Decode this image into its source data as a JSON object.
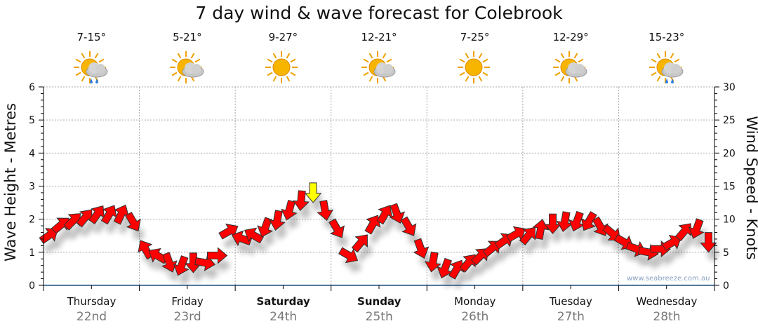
{
  "title": "7 day wind & wave forecast for Colebrook",
  "days": [
    {
      "day": "Thursday",
      "date": "22nd",
      "temp": "7-15°",
      "icon": "sun-cloud-rain",
      "bold": false
    },
    {
      "day": "Friday",
      "date": "23rd",
      "temp": "5-21°",
      "icon": "sun-cloud",
      "bold": false
    },
    {
      "day": "Saturday",
      "date": "24th",
      "temp": "9-27°",
      "icon": "sun",
      "bold": true
    },
    {
      "day": "Sunday",
      "date": "25th",
      "temp": "12-21°",
      "icon": "sun-cloud",
      "bold": true
    },
    {
      "day": "Monday",
      "date": "26th",
      "temp": "7-25°",
      "icon": "sun",
      "bold": false
    },
    {
      "day": "Tuesday",
      "date": "27th",
      "temp": "12-29°",
      "icon": "sun-cloud",
      "bold": false
    },
    {
      "day": "Wednesday",
      "date": "28th",
      "temp": "15-23°",
      "icon": "sun-cloud-rain",
      "bold": false
    }
  ],
  "watermark": "www.seabreeze.com.au",
  "chart_data": {
    "type": "scatter",
    "title": "7 day wind & wave forecast for Colebrook",
    "ylabel": "Wave Height - Metres",
    "y2label": "Wind Speed - Knots",
    "ylim": [
      0,
      6
    ],
    "y2lim": [
      0,
      30
    ],
    "yticks": [
      "0",
      "1",
      "2",
      "3",
      "4",
      "5",
      "6"
    ],
    "y2ticks": [
      "0",
      "5",
      "10",
      "15",
      "20",
      "25",
      "30"
    ],
    "grid": true,
    "points_per_day": 8,
    "wind_speed_knots": [
      7.6,
      9.2,
      9.8,
      10.3,
      10.8,
      10.8,
      10.8,
      9.5,
      5.5,
      4.5,
      3.4,
      2.9,
      3.4,
      3.4,
      4.5,
      8.2,
      7.1,
      7.6,
      8.7,
      9.8,
      11.3,
      12.8,
      14,
      11.3,
      8.5,
      4.5,
      6.5,
      9.3,
      10.8,
      10.8,
      8.8,
      5.5,
      3.5,
      2.5,
      2.5,
      3.5,
      4.5,
      5.7,
      6.8,
      7.8,
      7.6,
      8.5,
      9.3,
      9.6,
      9.6,
      9.6,
      8.8,
      7.8,
      6.5,
      5.5,
      5,
      5.5,
      6.5,
      8.2,
      8.5,
      6.5
    ],
    "wind_dir_deg": [
      55,
      50,
      45,
      40,
      35,
      30,
      25,
      150,
      330,
      300,
      160,
      200,
      180,
      100,
      90,
      60,
      290,
      300,
      200,
      190,
      195,
      185,
      180,
      170,
      150,
      120,
      40,
      30,
      30,
      160,
      150,
      160,
      190,
      200,
      30,
      40,
      45,
      50,
      55,
      60,
      40,
      10,
      180,
      190,
      200,
      210,
      150,
      130,
      120,
      110,
      100,
      90,
      60,
      40,
      200,
      180
    ]
  }
}
